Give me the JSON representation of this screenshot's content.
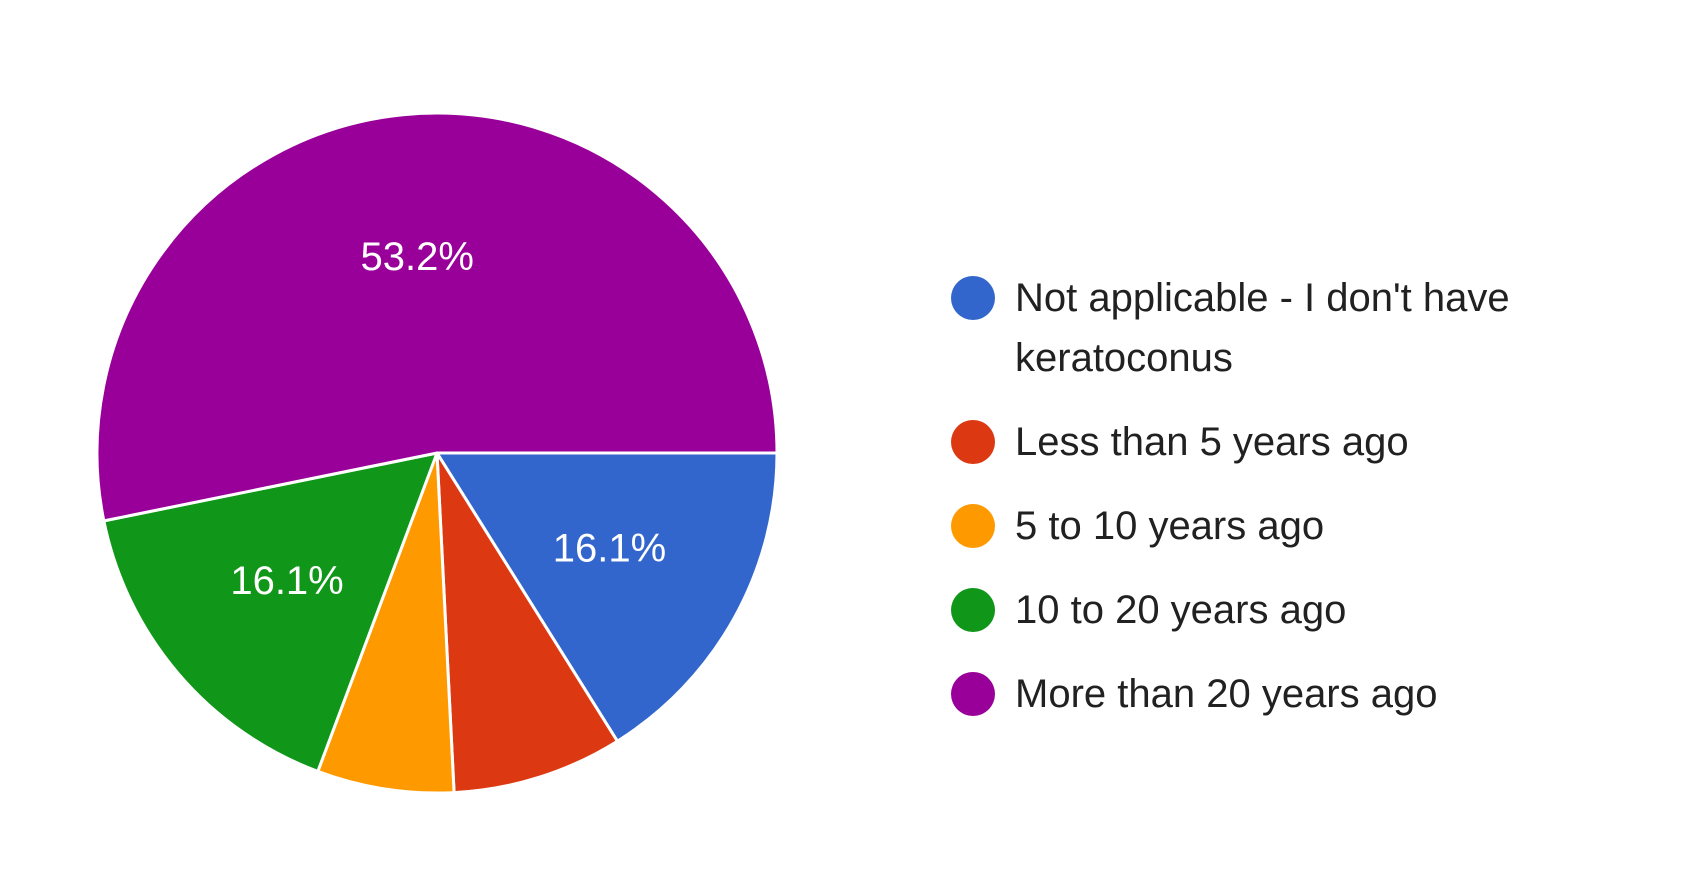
{
  "chart_data": {
    "type": "pie",
    "title": "",
    "legend_position": "right",
    "slices": [
      {
        "label": "Not applicable - I don't have keratoconus",
        "value": 16.1,
        "display": "16.1%",
        "color": "#3366cc"
      },
      {
        "label": "Less than 5 years ago",
        "value": 8.1,
        "display": "",
        "color": "#dc3912"
      },
      {
        "label": "5 to 10 years ago",
        "value": 6.5,
        "display": "",
        "color": "#ff9900"
      },
      {
        "label": "10 to 20 years ago",
        "value": 16.1,
        "display": "16.1%",
        "color": "#109618"
      },
      {
        "label": "More than 20 years ago",
        "value": 53.2,
        "display": "53.2%",
        "color": "#990099"
      }
    ]
  }
}
